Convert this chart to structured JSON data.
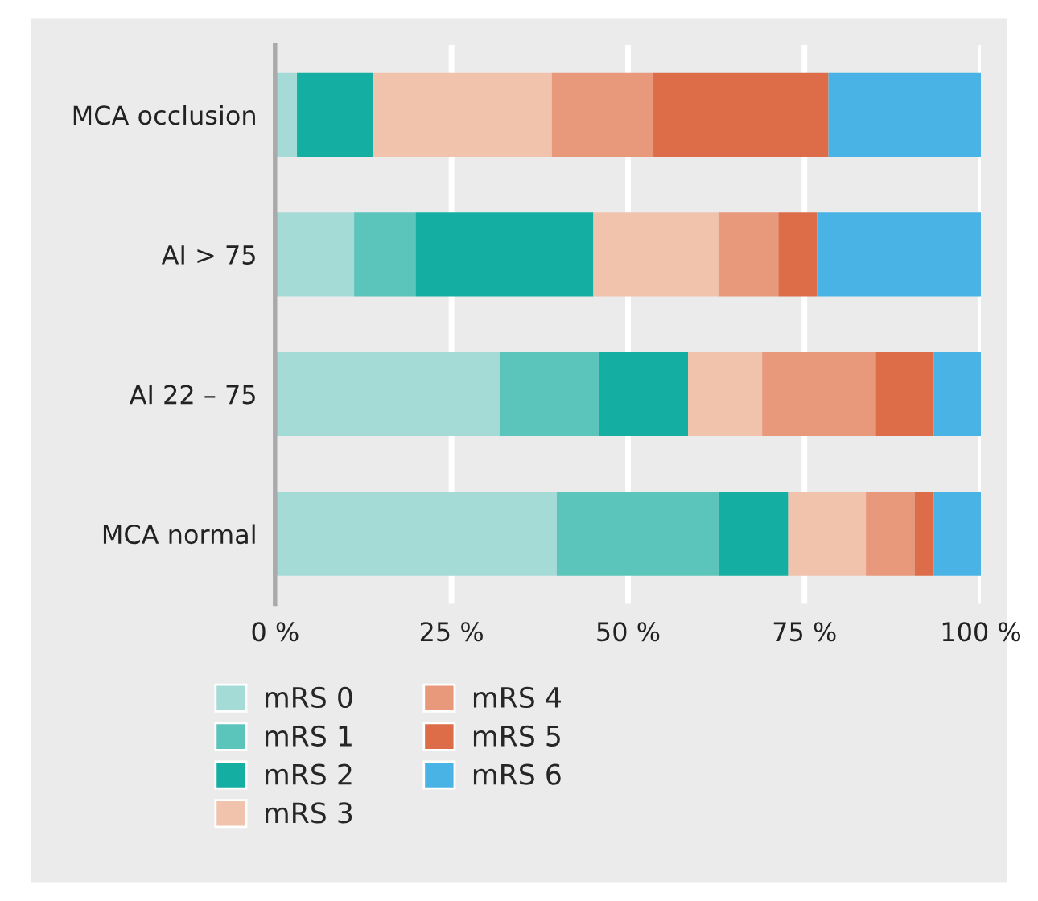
{
  "chart_data": {
    "type": "bar",
    "orientation": "horizontal",
    "stacked": true,
    "categories": [
      "MCA occlusion",
      "AI > 75",
      "AI 22 – 75",
      "MCA normal"
    ],
    "series": [
      {
        "name": "mRS 0",
        "color": "#a5dbd7",
        "values": [
          3.1,
          11.2,
          31.8,
          39.9
        ]
      },
      {
        "name": "mRS 1",
        "color": "#5bc4bb",
        "values": [
          0,
          8.7,
          14,
          22.9
        ]
      },
      {
        "name": "mRS 2",
        "color": "#14afa2",
        "values": [
          10.8,
          25.2,
          12.7,
          9.9
        ]
      },
      {
        "name": "mRS 3",
        "color": "#f1c3ad",
        "values": [
          25.3,
          17.7,
          10.5,
          11
        ]
      },
      {
        "name": "mRS 4",
        "color": "#e8997b",
        "values": [
          14.4,
          8.5,
          16.1,
          6.9
        ]
      },
      {
        "name": "mRS 5",
        "color": "#dd6c48",
        "values": [
          24.8,
          5.5,
          8.2,
          2.7
        ]
      },
      {
        "name": "mRS 6",
        "color": "#4ab3e5",
        "values": [
          21.6,
          23.2,
          6.7,
          6.7
        ]
      }
    ],
    "xlim": [
      0,
      100
    ],
    "xticks": [
      {
        "value": 0,
        "label": "0 %"
      },
      {
        "value": 25,
        "label": "25 %"
      },
      {
        "value": 50,
        "label": "50 %"
      },
      {
        "value": 75,
        "label": "75 %"
      },
      {
        "value": 100,
        "label": "100 %"
      }
    ],
    "grid": "x",
    "legend": "bottom"
  }
}
